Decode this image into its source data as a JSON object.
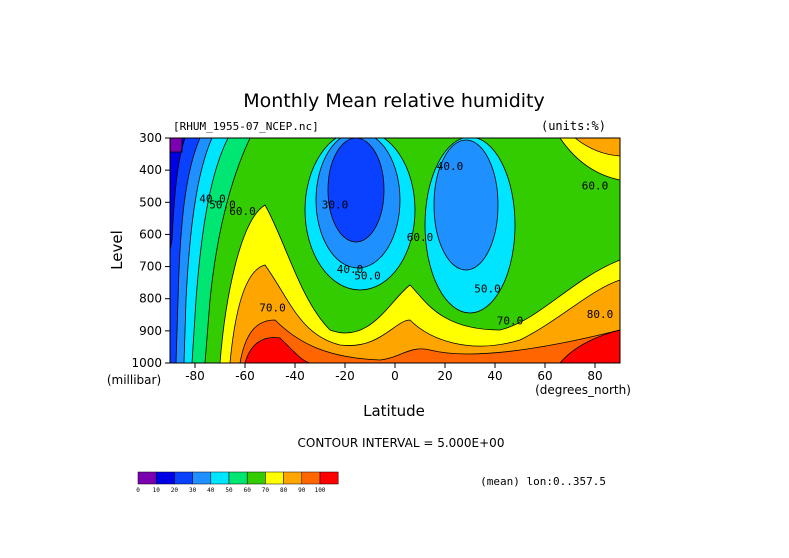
{
  "chart_data": {
    "type": "contour",
    "title": "Monthly Mean relative humidity",
    "file_label": "[RHUM_1955-07_NCEP.nc]",
    "units_label": "(units:%)",
    "xlabel": "Latitude",
    "x_units": "(degrees_north)",
    "ylabel": "Level",
    "y_units": "(millibar)",
    "xlim": [
      -90,
      90
    ],
    "ylim": [
      1000,
      300
    ],
    "x_ticks": [
      "-80",
      "-60",
      "-40",
      "-20",
      "0",
      "20",
      "40",
      "60",
      "80"
    ],
    "x_tick_values": [
      -80,
      -60,
      -40,
      -20,
      0,
      20,
      40,
      60,
      80
    ],
    "y_ticks": [
      "300",
      "400",
      "500",
      "600",
      "700",
      "800",
      "900",
      "1000"
    ],
    "y_tick_values": [
      300,
      400,
      500,
      600,
      700,
      800,
      900,
      1000
    ],
    "contour_interval_text": "CONTOUR INTERVAL = 5.000E+00",
    "mean_label": "(mean) lon:0..357.5",
    "contour_labels": [
      {
        "text": "40.0",
        "lat": -73,
        "lev": 500
      },
      {
        "text": "50.0",
        "lat": -69,
        "lev": 520
      },
      {
        "text": "60.0",
        "lat": -61,
        "lev": 540
      },
      {
        "text": "30.0",
        "lat": -24,
        "lev": 520
      },
      {
        "text": "40.0",
        "lat": -18,
        "lev": 720
      },
      {
        "text": "50.0",
        "lat": -11,
        "lev": 740
      },
      {
        "text": "60.0",
        "lat": 10,
        "lev": 620
      },
      {
        "text": "40.0",
        "lat": 22,
        "lev": 400
      },
      {
        "text": "50.0",
        "lat": 37,
        "lev": 780
      },
      {
        "text": "70.0",
        "lat": -49,
        "lev": 840
      },
      {
        "text": "70.0",
        "lat": 46,
        "lev": 880
      },
      {
        "text": "60.0",
        "lat": 80,
        "lev": 460
      },
      {
        "text": "80.0",
        "lat": 82,
        "lev": 860
      }
    ],
    "colorbar": {
      "colors": [
        "#7b00b0",
        "#0000e6",
        "#0a40ff",
        "#1e90ff",
        "#00e5ff",
        "#00e673",
        "#33cc00",
        "#ffff00",
        "#ffa500",
        "#ff6600",
        "#ff0000"
      ],
      "ticks": [
        "0",
        "10",
        "20",
        "30",
        "40",
        "50",
        "60",
        "70",
        "80",
        "90",
        "100"
      ]
    }
  }
}
